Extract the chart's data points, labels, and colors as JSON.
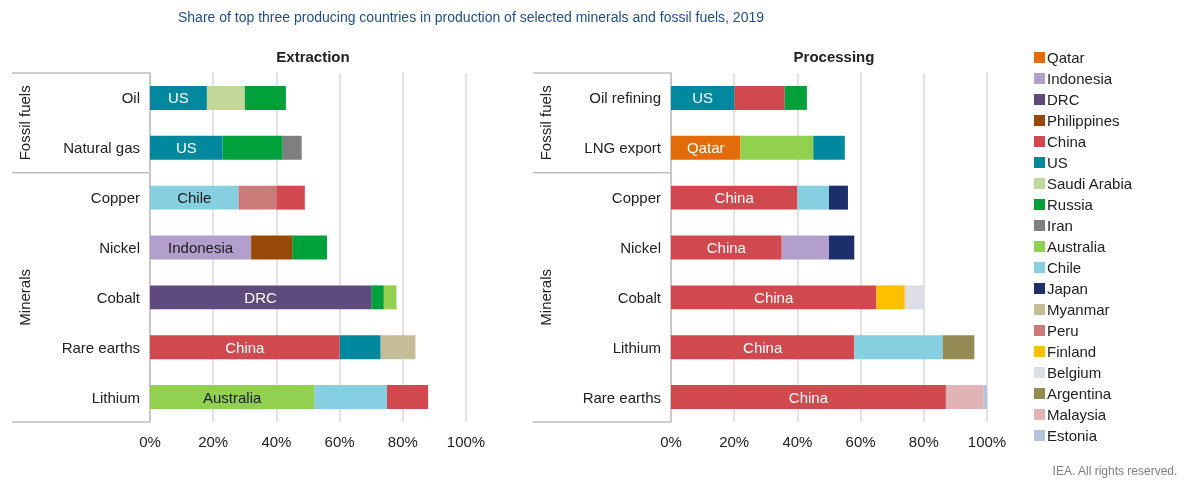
{
  "chart_data": [
    {
      "type": "bar",
      "title": "Share of top three producing countries in production of selected minerals and fossil fuels, 2019",
      "subtitle": "Extraction",
      "orientation": "horizontal",
      "categories": [
        "Oil",
        "Natural gas",
        "Copper",
        "Nickel",
        "Cobalt",
        "Rare earths",
        "Lithium"
      ],
      "xlim": [
        0,
        100
      ],
      "xticks": [
        {
          "value": 0,
          "label": "0%"
        },
        {
          "value": 20,
          "label": "20%"
        },
        {
          "value": 40,
          "label": "40%"
        },
        {
          "value": 60,
          "label": "60%"
        },
        {
          "value": 80,
          "label": "80%"
        },
        {
          "value": 100,
          "label": "100%"
        }
      ],
      "grid": "x",
      "annotations": [
        "Fossil fuels",
        "Minerals"
      ],
      "series": [
        {
          "color": "#00889e",
          "values": [
            18,
            23,
            null,
            null,
            null,
            13,
            null
          ],
          "base": [
            0,
            0,
            null,
            null,
            null,
            60,
            null
          ],
          "value_labels": [
            "US",
            "US",
            null,
            null,
            null,
            null,
            null
          ]
        },
        {
          "color": "#c4d79b",
          "values": [
            12,
            null,
            null,
            null,
            null,
            null,
            null
          ],
          "base": [
            18,
            null,
            null,
            null,
            null,
            null,
            null
          ]
        },
        {
          "color": "#00a13a",
          "values": [
            13,
            19,
            null,
            11,
            4,
            null,
            null
          ],
          "base": [
            30,
            23,
            null,
            45,
            70,
            null,
            null
          ]
        },
        {
          "color": "#7f7f7f",
          "values": [
            null,
            6,
            null,
            null,
            null,
            null,
            null
          ],
          "base": [
            null,
            42,
            null,
            null,
            null,
            null,
            null
          ]
        },
        {
          "color": "#85cfe0",
          "values": [
            null,
            null,
            28,
            null,
            null,
            null,
            23
          ],
          "base": [
            null,
            null,
            0,
            null,
            null,
            null,
            52
          ],
          "value_labels": [
            null,
            null,
            "Chile",
            null,
            null,
            null,
            null
          ]
        },
        {
          "color": "#cb7a7a",
          "values": [
            null,
            null,
            12,
            null,
            null,
            null,
            null
          ],
          "base": [
            null,
            null,
            28,
            null,
            null,
            null,
            null
          ]
        },
        {
          "color": "#d1494e",
          "values": [
            null,
            null,
            9,
            null,
            null,
            60,
            13
          ],
          "base": [
            null,
            null,
            40,
            null,
            null,
            0,
            75
          ],
          "value_labels": [
            null,
            null,
            null,
            null,
            null,
            "China",
            null
          ]
        },
        {
          "color": "#b29fcb",
          "values": [
            null,
            null,
            null,
            32,
            null,
            null,
            null
          ],
          "base": [
            null,
            null,
            null,
            0,
            null,
            null,
            null
          ],
          "value_labels": [
            null,
            null,
            null,
            "Indonesia",
            null,
            null,
            null
          ]
        },
        {
          "color": "#984807",
          "values": [
            null,
            null,
            null,
            13,
            null,
            null,
            null
          ],
          "base": [
            null,
            null,
            null,
            32,
            null,
            null,
            null
          ]
        },
        {
          "color": "#5e4a7d",
          "values": [
            null,
            null,
            null,
            null,
            70,
            null,
            null
          ],
          "base": [
            null,
            null,
            null,
            null,
            0,
            null,
            null
          ],
          "value_labels": [
            null,
            null,
            null,
            null,
            "DRC",
            null,
            null
          ]
        },
        {
          "color": "#92d050",
          "values": [
            null,
            null,
            null,
            null,
            4,
            null,
            52
          ],
          "base": [
            null,
            null,
            null,
            null,
            74,
            null,
            0
          ],
          "value_labels": [
            null,
            null,
            null,
            null,
            null,
            null,
            "Australia"
          ]
        },
        {
          "color": "#c4bd97",
          "values": [
            null,
            null,
            null,
            null,
            null,
            11,
            null
          ],
          "base": [
            null,
            null,
            null,
            null,
            null,
            73,
            null
          ]
        }
      ]
    },
    {
      "type": "bar",
      "title": "Processing",
      "orientation": "horizontal",
      "categories": [
        "Oil refining",
        "LNG export",
        "Copper",
        "Nickel",
        "Cobalt",
        "Lithium",
        "Rare earths"
      ],
      "xlim": [
        0,
        100
      ],
      "xticks": [
        {
          "value": 0,
          "label": "0%"
        },
        {
          "value": 20,
          "label": "20%"
        },
        {
          "value": 40,
          "label": "40%"
        },
        {
          "value": 60,
          "label": "60%"
        },
        {
          "value": 80,
          "label": "80%"
        },
        {
          "value": 100,
          "label": "100%"
        }
      ],
      "grid": "x",
      "legend": "right",
      "annotations": [
        "Fossil fuels",
        "Minerals",
        "IEA. All rights reserved."
      ],
      "series": [
        {
          "name": "Qatar",
          "color": "#e36c09",
          "values": [
            null,
            22,
            null,
            null,
            null,
            null,
            null
          ],
          "base": [
            null,
            0,
            null,
            null,
            null,
            null,
            null
          ],
          "value_labels": [
            null,
            "Qatar",
            null,
            null,
            null,
            null,
            null
          ]
        },
        {
          "name": "Indonesia",
          "color": "#b29fcb",
          "values": [
            null,
            null,
            null,
            15,
            null,
            null,
            null
          ],
          "base": [
            null,
            null,
            null,
            35,
            null,
            null,
            null
          ]
        },
        {
          "name": "DRC",
          "color": "#5e4a7d",
          "values": [
            null,
            null,
            null,
            null,
            null,
            null,
            null
          ]
        },
        {
          "name": "Philippines",
          "color": "#984807",
          "values": [
            null,
            null,
            null,
            null,
            null,
            null,
            null
          ]
        },
        {
          "name": "China",
          "color": "#d1494e",
          "values": [
            16,
            null,
            40,
            35,
            65,
            58,
            87
          ],
          "base": [
            20,
            null,
            0,
            0,
            0,
            0,
            0
          ],
          "value_labels": [
            null,
            null,
            "China",
            "China",
            "China",
            "China",
            "China"
          ]
        },
        {
          "name": "US",
          "color": "#00889e",
          "values": [
            20,
            10,
            null,
            null,
            null,
            null,
            null
          ],
          "base": [
            0,
            45,
            null,
            null,
            null,
            null,
            null
          ],
          "value_labels": [
            "US",
            null,
            null,
            null,
            null,
            null,
            null
          ]
        },
        {
          "name": "Saudi Arabia",
          "color": "#c4d79b",
          "values": [
            null,
            null,
            null,
            null,
            null,
            null,
            null
          ]
        },
        {
          "name": "Russia",
          "color": "#00a13a",
          "values": [
            7,
            null,
            null,
            null,
            null,
            null,
            null
          ],
          "base": [
            36,
            null,
            null,
            null,
            null,
            null,
            null
          ]
        },
        {
          "name": "Iran",
          "color": "#7f7f7f",
          "values": [
            null,
            null,
            null,
            null,
            null,
            null,
            null
          ]
        },
        {
          "name": "Australia",
          "color": "#92d050",
          "values": [
            null,
            23,
            null,
            null,
            null,
            null,
            null
          ],
          "base": [
            null,
            22,
            null,
            null,
            null,
            null,
            null
          ]
        },
        {
          "name": "Chile",
          "color": "#85cfe0",
          "values": [
            null,
            null,
            10,
            null,
            null,
            28,
            null
          ],
          "base": [
            null,
            null,
            40,
            null,
            null,
            58,
            null
          ]
        },
        {
          "name": "Japan",
          "color": "#1c2f6b",
          "values": [
            null,
            null,
            6,
            8,
            null,
            null,
            null
          ],
          "base": [
            null,
            null,
            50,
            50,
            null,
            null,
            null
          ]
        },
        {
          "name": "Myanmar",
          "color": "#c4bd97",
          "values": [
            null,
            null,
            null,
            null,
            null,
            null,
            null
          ]
        },
        {
          "name": "Peru",
          "color": "#cb7a7a",
          "values": [
            null,
            null,
            null,
            null,
            null,
            null,
            null
          ]
        },
        {
          "name": "Finland",
          "color": "#ffc000",
          "values": [
            null,
            null,
            null,
            null,
            9,
            null,
            null
          ],
          "base": [
            null,
            null,
            null,
            null,
            65,
            null,
            null
          ]
        },
        {
          "name": "Belgium",
          "color": "#dddde8",
          "values": [
            null,
            null,
            null,
            null,
            6,
            null,
            null
          ],
          "base": [
            null,
            null,
            null,
            null,
            74,
            null,
            null
          ]
        },
        {
          "name": "Argentina",
          "color": "#948a54",
          "values": [
            null,
            null,
            null,
            null,
            null,
            10,
            null
          ],
          "base": [
            null,
            null,
            null,
            null,
            null,
            86,
            null
          ]
        },
        {
          "name": "Malaysia",
          "color": "#e0b4b4",
          "values": [
            null,
            null,
            null,
            null,
            null,
            null,
            12
          ],
          "base": [
            null,
            null,
            null,
            null,
            null,
            null,
            87
          ]
        },
        {
          "name": "Estonia",
          "color": "#b4c4de",
          "values": [
            null,
            null,
            null,
            null,
            null,
            null,
            1
          ],
          "base": [
            null,
            null,
            null,
            null,
            null,
            null,
            99
          ]
        }
      ]
    }
  ]
}
